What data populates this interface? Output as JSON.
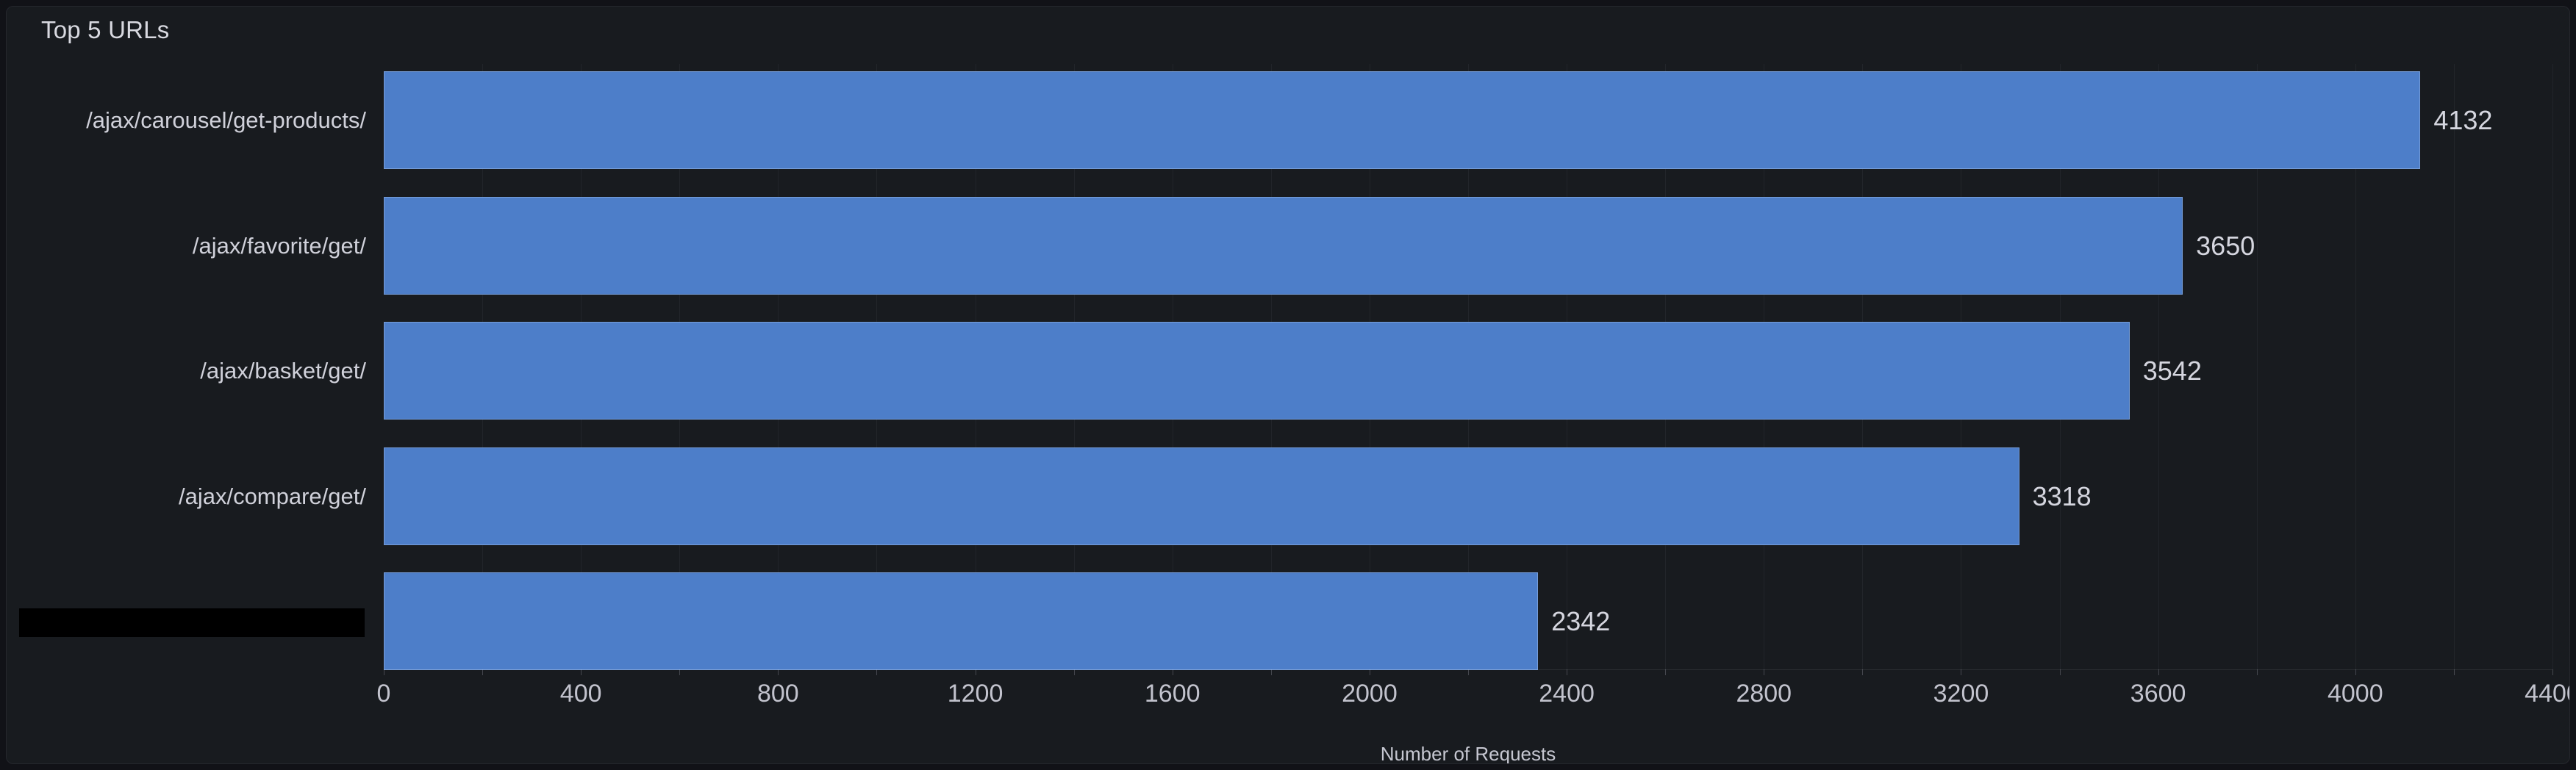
{
  "panel": {
    "title": "Top 5 URLs"
  },
  "chart_data": {
    "type": "bar",
    "orientation": "horizontal",
    "title": "Top 5 URLs",
    "categories": [
      "/ajax/carousel/get-products/",
      "/ajax/favorite/get/",
      "/ajax/basket/get/",
      "/ajax/compare/get/",
      ""
    ],
    "label_redacted": [
      false,
      false,
      false,
      false,
      true
    ],
    "values": [
      4132,
      3650,
      3542,
      3318,
      2342
    ],
    "value_labels": [
      "4132",
      "3650",
      "3542",
      "3318",
      "2342"
    ],
    "xlabel": "Number of Requests",
    "ylabel": "",
    "xlim": [
      0,
      4400
    ],
    "x_ticks": [
      0,
      400,
      800,
      1200,
      1600,
      2000,
      2400,
      2800,
      3200,
      3600,
      4000,
      4400
    ],
    "grid_step": 200,
    "grid": "vertical-minor",
    "legend": "none",
    "bar_color": "#4d7ec9",
    "panel_background": "#181b1f",
    "page_background": "#111217"
  }
}
